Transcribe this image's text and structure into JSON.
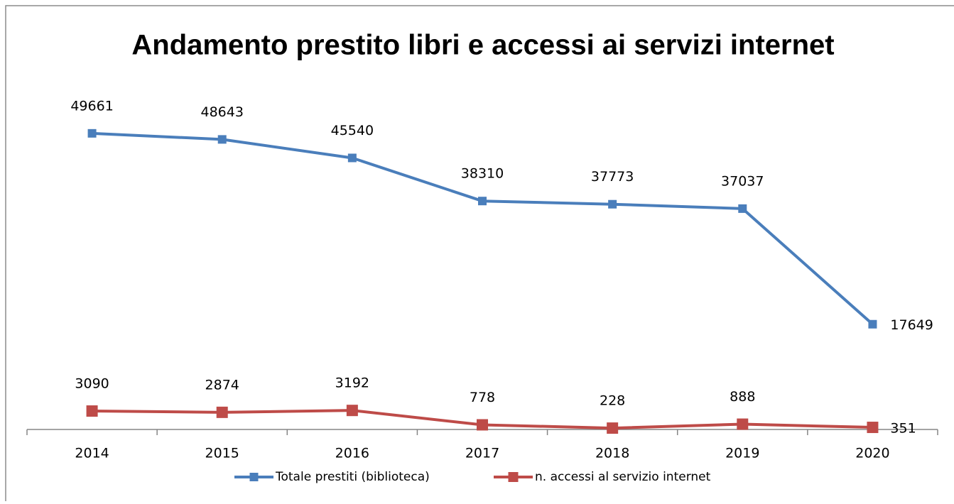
{
  "chart_data": {
    "type": "line",
    "title": "Andamento prestito libri e accessi ai servizi internet",
    "categories": [
      "2014",
      "2015",
      "2016",
      "2017",
      "2018",
      "2019",
      "2020"
    ],
    "series": [
      {
        "name": "Totale prestiti (biblioteca)",
        "color": "#4a7ebb",
        "values": [
          49661,
          48643,
          45540,
          38310,
          37773,
          37037,
          17649
        ]
      },
      {
        "name": "n. accessi al servizio internet",
        "color": "#be4b48",
        "values": [
          3090,
          2874,
          3192,
          778,
          228,
          888,
          351
        ]
      }
    ],
    "ylim": [
      0,
      60000
    ],
    "legend": "bottom"
  }
}
